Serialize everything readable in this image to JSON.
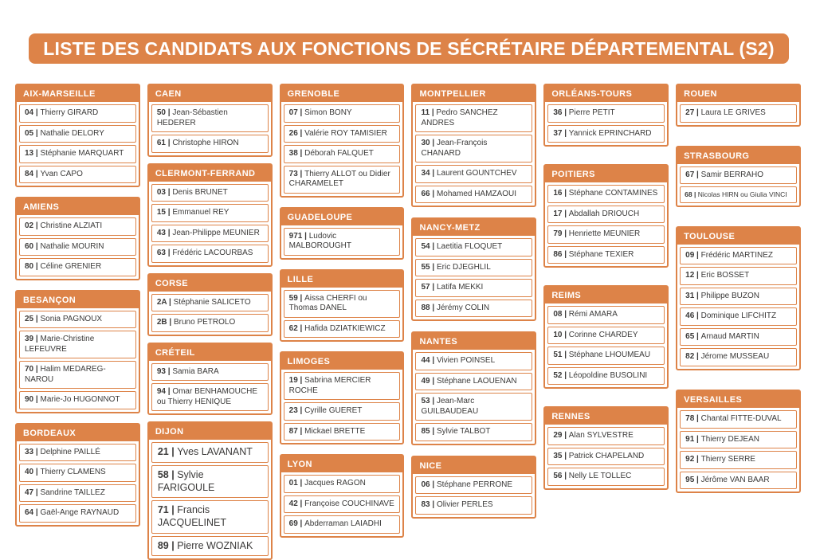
{
  "title": "LISTE DES CANDIDATS AUX FONCTIONS DE SÉCRÉTAIRE DÉPARTEMENTAL (S2)",
  "separator": "|",
  "colors": {
    "accent": "#DD8348",
    "header_text": "#FFFFFF",
    "entry_text": "#3B3A39",
    "background": "#FFFFFF"
  },
  "columns": [
    {
      "sections": [
        {
          "region": "AIX-MARSEILLE",
          "entries": [
            {
              "num": "04",
              "name": "Thierry GIRARD"
            },
            {
              "num": "05",
              "name": "Nathalie DELORY"
            },
            {
              "num": "13",
              "name": "Stéphanie MARQUART"
            },
            {
              "num": "84",
              "name": "Yvan CAPO"
            }
          ]
        },
        {
          "region": "AMIENS",
          "entries": [
            {
              "num": "02",
              "name": "Christine ALZIATI"
            },
            {
              "num": "60",
              "name": "Nathalie MOURIN"
            },
            {
              "num": "80",
              "name": "Céline GRENIER"
            }
          ]
        },
        {
          "region": "BESANÇON",
          "entries": [
            {
              "num": "25",
              "name": "Sonia PAGNOUX"
            },
            {
              "num": "39",
              "name": "Marie-Christine LEFEUVRE"
            },
            {
              "num": "70",
              "name": "Halim MEDAREG-NAROU"
            },
            {
              "num": "90",
              "name": "Marie-Jo HUGONNOT"
            }
          ]
        },
        {
          "region": "BORDEAUX",
          "entries": [
            {
              "num": "33",
              "name": "Delphine PAILLÉ"
            },
            {
              "num": "40",
              "name": "Thierry CLAMENS"
            },
            {
              "num": "47",
              "name": "Sandrine TAILLEZ"
            },
            {
              "num": "64",
              "name": "Gaël-Ange RAYNAUD"
            }
          ]
        }
      ]
    },
    {
      "sections": [
        {
          "region": "CAEN",
          "entries": [
            {
              "num": "50",
              "name": "Jean-Sébastien HEDERER"
            },
            {
              "num": "61",
              "name": "Christophe HIRON"
            }
          ]
        },
        {
          "region": "CLERMONT-FERRAND",
          "entries": [
            {
              "num": "03",
              "name": "Denis BRUNET"
            },
            {
              "num": "15",
              "name": "Emmanuel REY"
            },
            {
              "num": "43",
              "name": "Jean-Philippe MEUNIER"
            },
            {
              "num": "63",
              "name": "Frédéric LACOURBAS"
            }
          ]
        },
        {
          "region": "CORSE",
          "entries": [
            {
              "num": "2A",
              "name": "Stéphanie SALICETO"
            },
            {
              "num": "2B",
              "name": "Bruno PETROLO"
            }
          ]
        },
        {
          "region": "CRÉTEIL",
          "entries": [
            {
              "num": "93",
              "name": "Samia BARA"
            },
            {
              "num": "94",
              "name": "Omar BENHAMOUCHE ou Thierry HENIQUE"
            }
          ]
        },
        {
          "region": "DIJON",
          "entry_size": "lg",
          "entries": [
            {
              "num": "21",
              "name": "Yves LAVANANT"
            },
            {
              "num": "58",
              "name": "Sylvie FARIGOULE"
            },
            {
              "num": "71",
              "name": "Francis JACQUELINET"
            },
            {
              "num": "89",
              "name": "Pierre WOZNIAK"
            }
          ]
        }
      ]
    },
    {
      "sections": [
        {
          "region": "GRENOBLE",
          "entries": [
            {
              "num": "07",
              "name": "Simon BONY"
            },
            {
              "num": "26",
              "name": "Valérie ROY TAMISIER"
            },
            {
              "num": "38",
              "name": "Déborah FALQUET"
            },
            {
              "num": "73",
              "name": "Thierry ALLOT ou Didier CHARAMELET"
            }
          ]
        },
        {
          "region": "GUADELOUPE",
          "entries": [
            {
              "num": "971",
              "name": "Ludovic MALBOROUGHT"
            }
          ]
        },
        {
          "region": "LILLE",
          "entries": [
            {
              "num": "59",
              "name": "Aissa CHERFI ou Thomas DANEL"
            },
            {
              "num": "62",
              "name": "Hafida DZIATKIEWICZ"
            }
          ]
        },
        {
          "region": "LIMOGES",
          "entries": [
            {
              "num": "19",
              "name": "Sabrina MERCIER ROCHE"
            },
            {
              "num": "23",
              "name": "Cyrille GUERET"
            },
            {
              "num": "87",
              "name": "Mickael BRETTE"
            }
          ]
        },
        {
          "region": "LYON",
          "entries": [
            {
              "num": "01",
              "name": "Jacques RAGON"
            },
            {
              "num": "42",
              "name": "Françoise COUCHINAVE"
            },
            {
              "num": "69",
              "name": "Abderraman LAIADHI"
            }
          ]
        }
      ]
    },
    {
      "sections": [
        {
          "region": "MONTPELLIER",
          "entries": [
            {
              "num": "11",
              "name": "Pedro SANCHEZ ANDRES"
            },
            {
              "num": "30",
              "name": "Jean-François CHANARD"
            },
            {
              "num": "34",
              "name": "Laurent GOUNTCHEV"
            },
            {
              "num": "66",
              "name": "Mohamed HAMZAOUI"
            }
          ]
        },
        {
          "region": "NANCY-METZ",
          "entries": [
            {
              "num": "54",
              "name": "Laetitia FLOQUET"
            },
            {
              "num": "55",
              "name": "Eric DJEGHLIL"
            },
            {
              "num": "57",
              "name": "Latifa MEKKI"
            },
            {
              "num": "88",
              "name": "Jérémy COLIN"
            }
          ]
        },
        {
          "region": "NANTES",
          "entries": [
            {
              "num": "44",
              "name": "Vivien POINSEL"
            },
            {
              "num": "49",
              "name": "Stéphane LAOUENAN"
            },
            {
              "num": "53",
              "name": "Jean-Marc GUILBAUDEAU"
            },
            {
              "num": "85",
              "name": "Sylvie TALBOT"
            }
          ]
        },
        {
          "region": "NICE",
          "entries": [
            {
              "num": "06",
              "name": "Stéphane PERRONE"
            },
            {
              "num": "83",
              "name": "Olivier PERLES"
            }
          ]
        }
      ]
    },
    {
      "sections": [
        {
          "region": "ORLÉANS-TOURS",
          "entries": [
            {
              "num": "36",
              "name": "Pierre PETIT"
            },
            {
              "num": "37",
              "name": "Yannick EPRINCHARD"
            }
          ]
        },
        {
          "region": "POITIERS",
          "entries": [
            {
              "num": "16",
              "name": "Stéphane CONTAMINES"
            },
            {
              "num": "17",
              "name": "Abdallah DRIOUCH"
            },
            {
              "num": "79",
              "name": "Henriette MEUNIER"
            },
            {
              "num": "86",
              "name": "Stéphane TEXIER"
            }
          ]
        },
        {
          "region": "REIMS",
          "entries": [
            {
              "num": "08",
              "name": "Rémi AMARA"
            },
            {
              "num": "10",
              "name": "Corinne CHARDEY"
            },
            {
              "num": "51",
              "name": "Stéphane LHOUMEAU"
            },
            {
              "num": "52",
              "name": "Léopoldine BUSOLINI"
            }
          ]
        },
        {
          "region": "RENNES",
          "entries": [
            {
              "num": "29",
              "name": "Alan SYLVESTRE"
            },
            {
              "num": "35",
              "name": "Patrick CHAPELAND"
            },
            {
              "num": "56",
              "name": "Nelly LE TOLLEC"
            }
          ]
        }
      ]
    },
    {
      "sections": [
        {
          "region": "ROUEN",
          "entries": [
            {
              "num": "27",
              "name": "Laura LE GRIVES"
            }
          ]
        },
        {
          "region": "STRASBOURG",
          "entries": [
            {
              "num": "67",
              "name": "Samir BERRAHO"
            },
            {
              "num": "68",
              "name": "Nicolas HIRN ou Giulia VINCI",
              "size": "sm"
            }
          ]
        },
        {
          "region": "TOULOUSE",
          "entries": [
            {
              "num": "09",
              "name": "Frédéric MARTINEZ"
            },
            {
              "num": "12",
              "name": "Eric BOSSET"
            },
            {
              "num": "31",
              "name": "Philippe BUZON"
            },
            {
              "num": "46",
              "name": "Dominique LIFCHITZ"
            },
            {
              "num": "65",
              "name": "Arnaud MARTIN"
            },
            {
              "num": "82",
              "name": "Jérome MUSSEAU"
            }
          ]
        },
        {
          "region": "VERSAILLES",
          "entries": [
            {
              "num": "78",
              "name": "Chantal FITTE-DUVAL"
            },
            {
              "num": "91",
              "name": "Thierry DEJEAN"
            },
            {
              "num": "92",
              "name": "Thierry SERRE"
            },
            {
              "num": "95",
              "name": "Jérôme VAN BAAR"
            }
          ]
        }
      ]
    }
  ]
}
